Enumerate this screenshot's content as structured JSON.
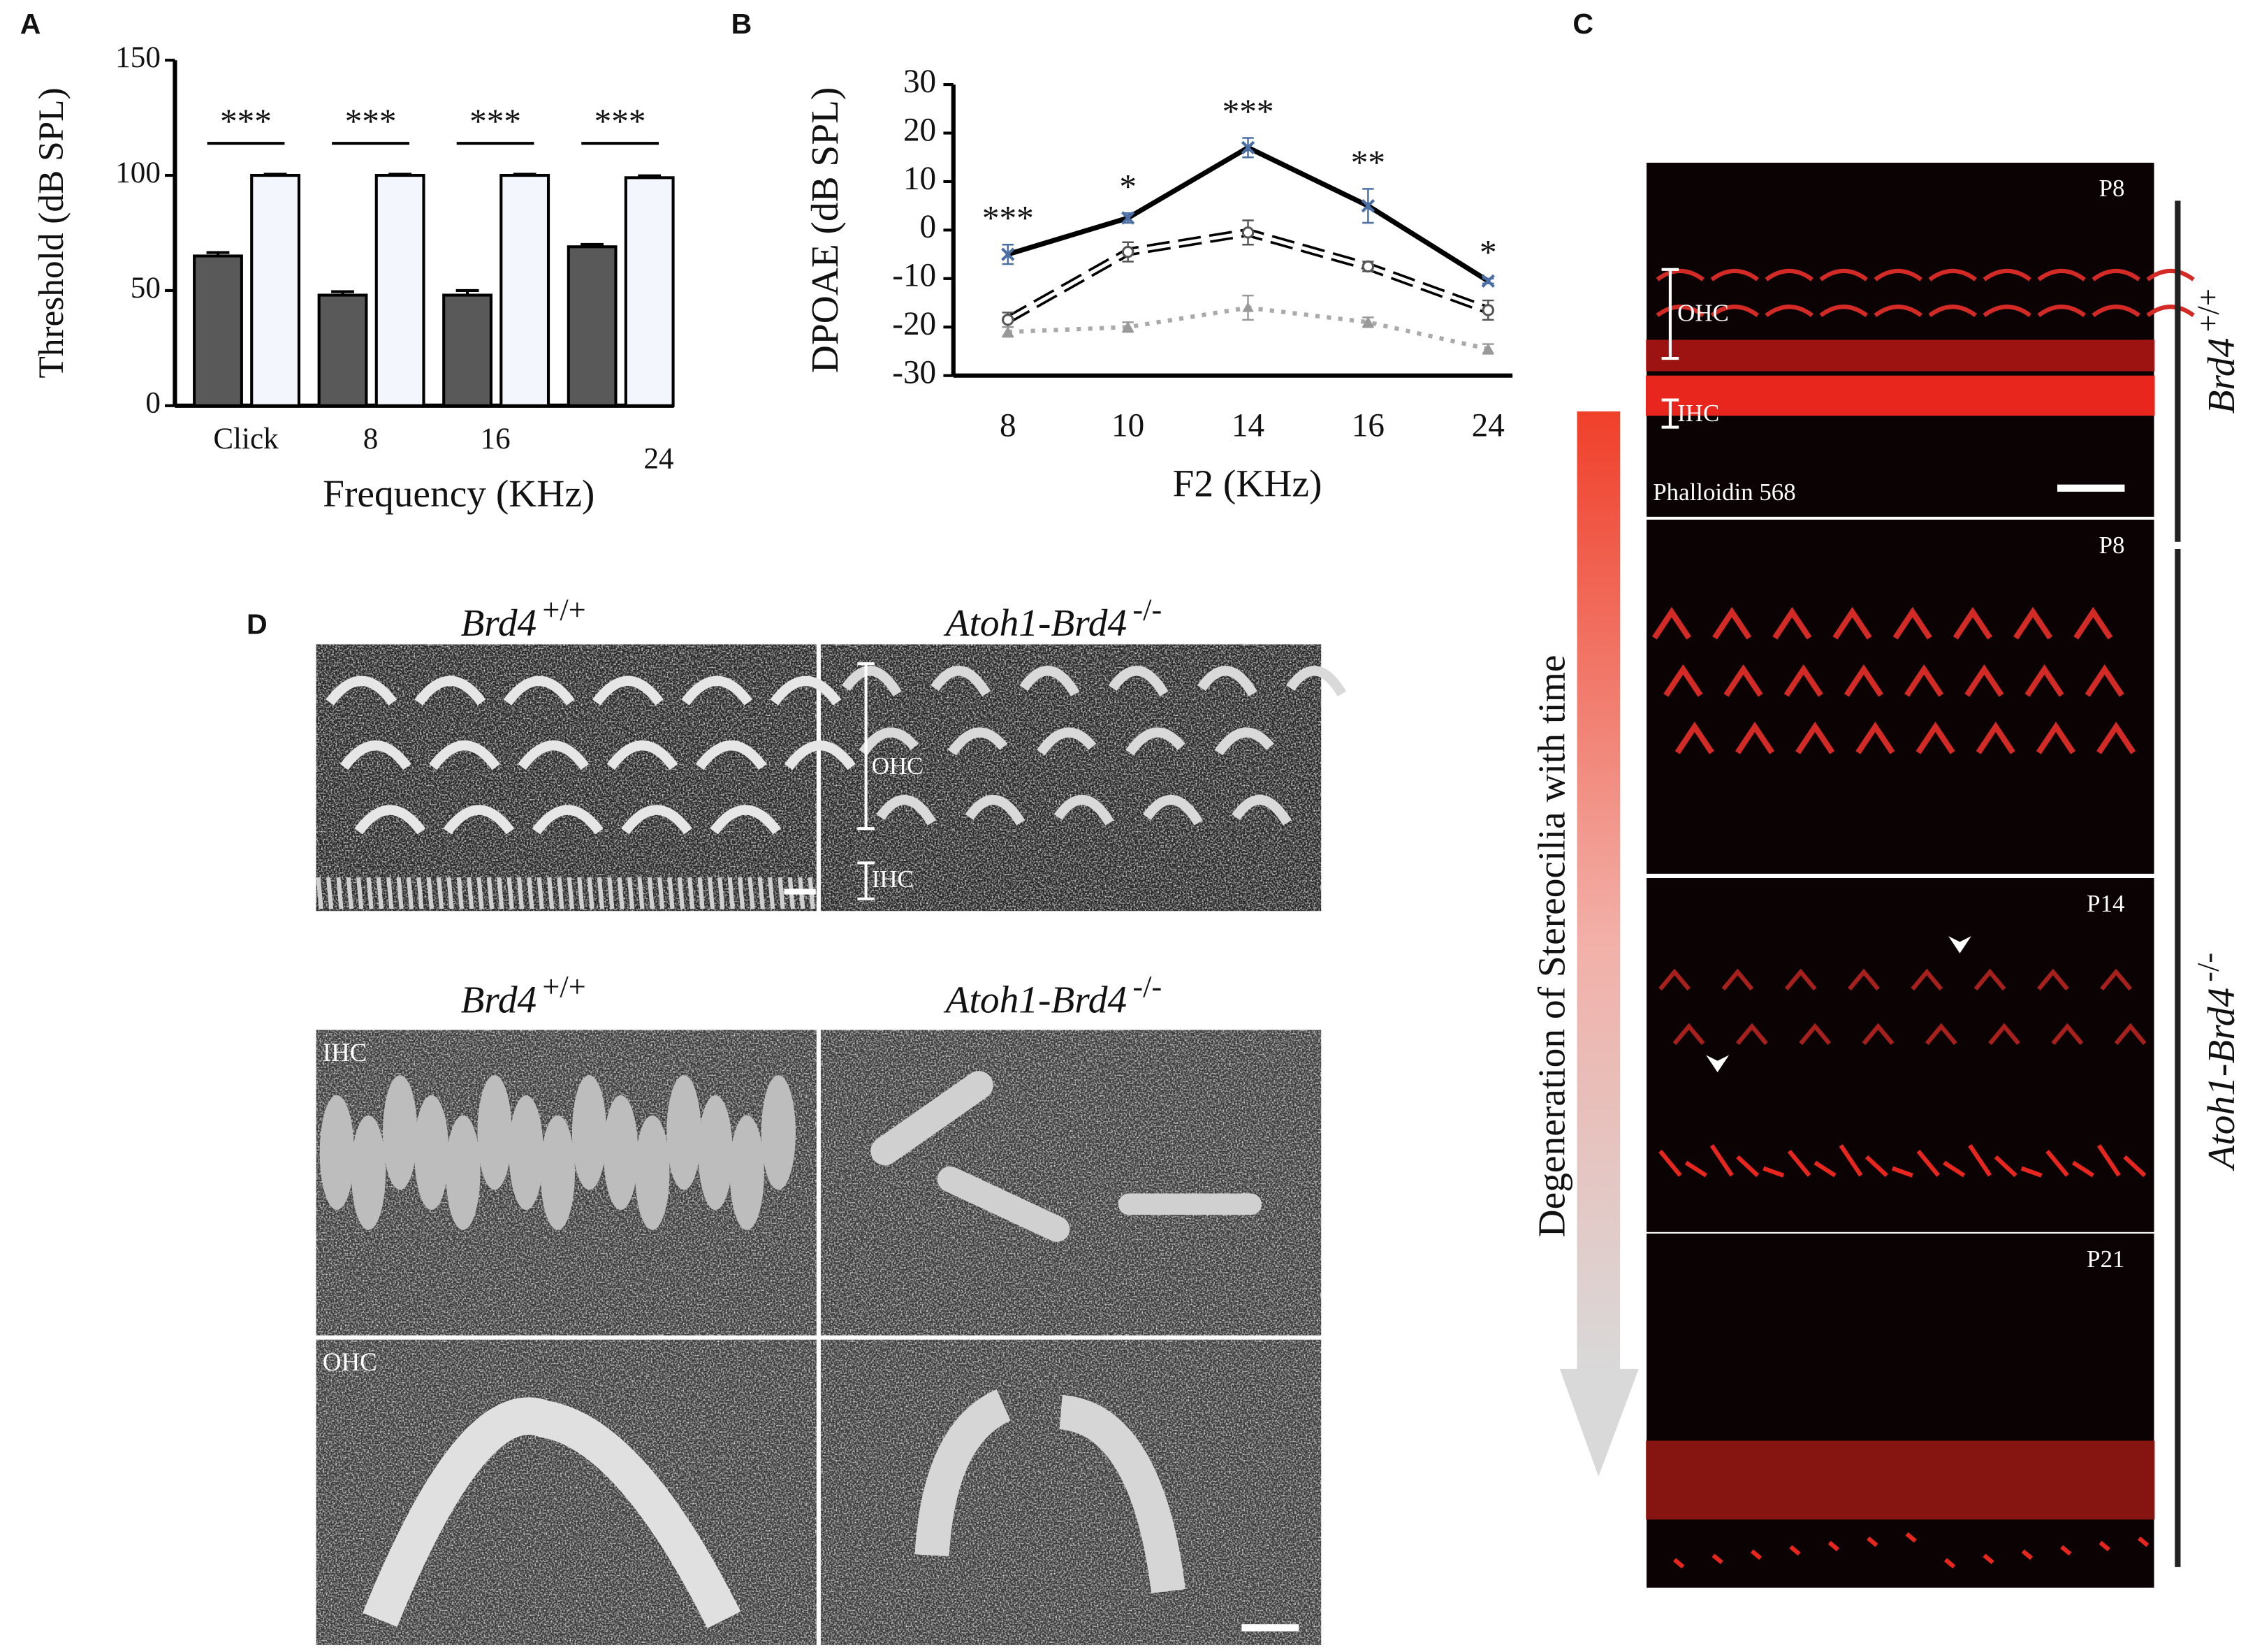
{
  "panel_labels": [
    "A",
    "B",
    "C",
    "D"
  ],
  "chart_data": [
    {
      "type": "bar",
      "ylabel": "Threshold (dB SPL)",
      "xlabel": "Frequency (KHz)",
      "categories": [
        "Click",
        "8",
        "16",
        "24"
      ],
      "series": [
        {
          "color": "#595959",
          "values": [
            65,
            48,
            48,
            69
          ],
          "errors": [
            1.5,
            1.5,
            2,
            1
          ]
        },
        {
          "color": "#f3f6fc",
          "values": [
            100,
            100,
            100,
            99
          ],
          "errors": [
            0.5,
            0.5,
            0.5,
            0.8
          ]
        }
      ],
      "annotations": [
        "***",
        "***",
        "***",
        "***"
      ],
      "ylim": [
        0,
        150
      ],
      "yticks": [
        0,
        50,
        100,
        150
      ]
    },
    {
      "type": "line",
      "ylabel": "DPOAE (dB SPL)",
      "xlabel": "F2 (KHz)",
      "categories": [
        "8",
        "10",
        "14",
        "16",
        "24"
      ],
      "series": [
        {
          "color": "#000000",
          "style": "solid",
          "marker": "x",
          "marker_color": "#4a6fa5",
          "values": [
            -5,
            2.5,
            17,
            5,
            -10.5
          ],
          "errors": [
            2,
            1,
            2,
            3.5,
            0.5
          ]
        },
        {
          "color": "#000000",
          "style": "dashed",
          "marker": "circle",
          "marker_color": "#555555",
          "values": [
            -18.5,
            -4.5,
            -0.5,
            -7.5,
            -16.5
          ],
          "errors": [
            1.5,
            2,
            2.5,
            1,
            2
          ]
        },
        {
          "color": "#aaaaaa",
          "style": "dotted",
          "marker": "triangle",
          "marker_color": "#999999",
          "values": [
            -21,
            -20,
            -16,
            -19,
            -24.5
          ],
          "errors": [
            1,
            1,
            2.5,
            1,
            1
          ]
        }
      ],
      "annotations": [
        "***",
        "*",
        "***",
        "**",
        "*"
      ],
      "ylim": [
        -30,
        30
      ],
      "yticks": [
        -30,
        -20,
        -10,
        0,
        10,
        20,
        30
      ]
    }
  ],
  "panel_c": {
    "images": [
      {
        "label": "P8"
      },
      {
        "label": "P8"
      },
      {
        "label": "P14"
      },
      {
        "label": "P21"
      }
    ],
    "cell_labels": [
      "OHC",
      "IHC"
    ],
    "stain": "Phalloidin 568",
    "arrow_label": "Degeneration of Stereocilia with time",
    "groups": [
      {
        "gene": "Brd4",
        "genotype": "+/+"
      },
      {
        "gene": "Atoh1-Brd4",
        "genotype": "-/-"
      }
    ]
  },
  "panel_d": {
    "top_titles": [
      {
        "gene": "Brd4",
        "genotype": "+/+"
      },
      {
        "gene": "Atoh1-Brd4",
        "genotype": "-/-"
      }
    ],
    "cell_labels": [
      "OHC",
      "IHC"
    ],
    "bottom_titles": [
      {
        "gene": "Brd4",
        "genotype": "+/+"
      },
      {
        "gene": "Atoh1-Brd4",
        "genotype": "-/-"
      }
    ],
    "row_labels": [
      "IHC",
      "OHC"
    ]
  }
}
